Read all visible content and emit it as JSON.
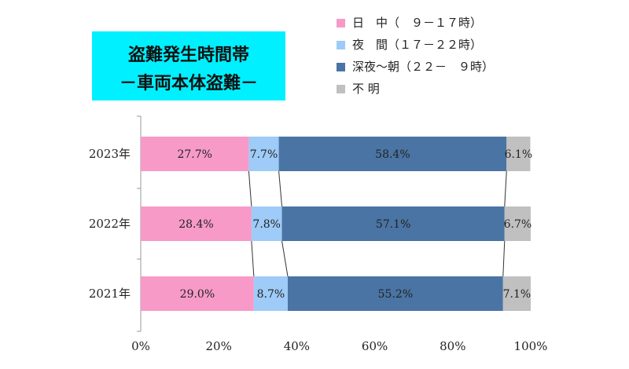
{
  "title": {
    "line1": "盗難発生時間帯",
    "line2": "－車両本体盗難－"
  },
  "colors": {
    "daytime": "#f79ac8",
    "night": "#9ecbf7",
    "late_night": "#4a74a3",
    "unknown": "#c0c0c0"
  },
  "chart_data": {
    "type": "bar",
    "orientation": "horizontal",
    "stacked": "percent",
    "categories": [
      "2023年",
      "2022年",
      "2021年"
    ],
    "series": [
      {
        "name": "日　中（　９－１７時）",
        "values": [
          27.7,
          28.4,
          29.0
        ],
        "labels": [
          "27.7%",
          "28.4%",
          "29.0%"
        ],
        "color": "#f79ac8"
      },
      {
        "name": "夜　間（１７－２２時）",
        "values": [
          7.7,
          7.8,
          8.7
        ],
        "labels": [
          "7.7%",
          "7.8%",
          "8.7%"
        ],
        "color": "#9ecbf7"
      },
      {
        "name": "深夜～朝（２２－　９時）",
        "values": [
          58.4,
          57.1,
          55.2
        ],
        "labels": [
          "58.4%",
          "57.1%",
          "55.2%"
        ],
        "color": "#4a74a3"
      },
      {
        "name": "不 明",
        "values": [
          6.1,
          6.7,
          7.1
        ],
        "labels": [
          "6.1%",
          "6.7%",
          "7.1%"
        ],
        "color": "#c0c0c0"
      }
    ],
    "xlim": [
      0,
      100
    ],
    "xticks": [
      "0%",
      "20%",
      "40%",
      "60%",
      "80%",
      "100%"
    ],
    "legend_position": "top-right",
    "series_lines": true,
    "grid": false
  }
}
